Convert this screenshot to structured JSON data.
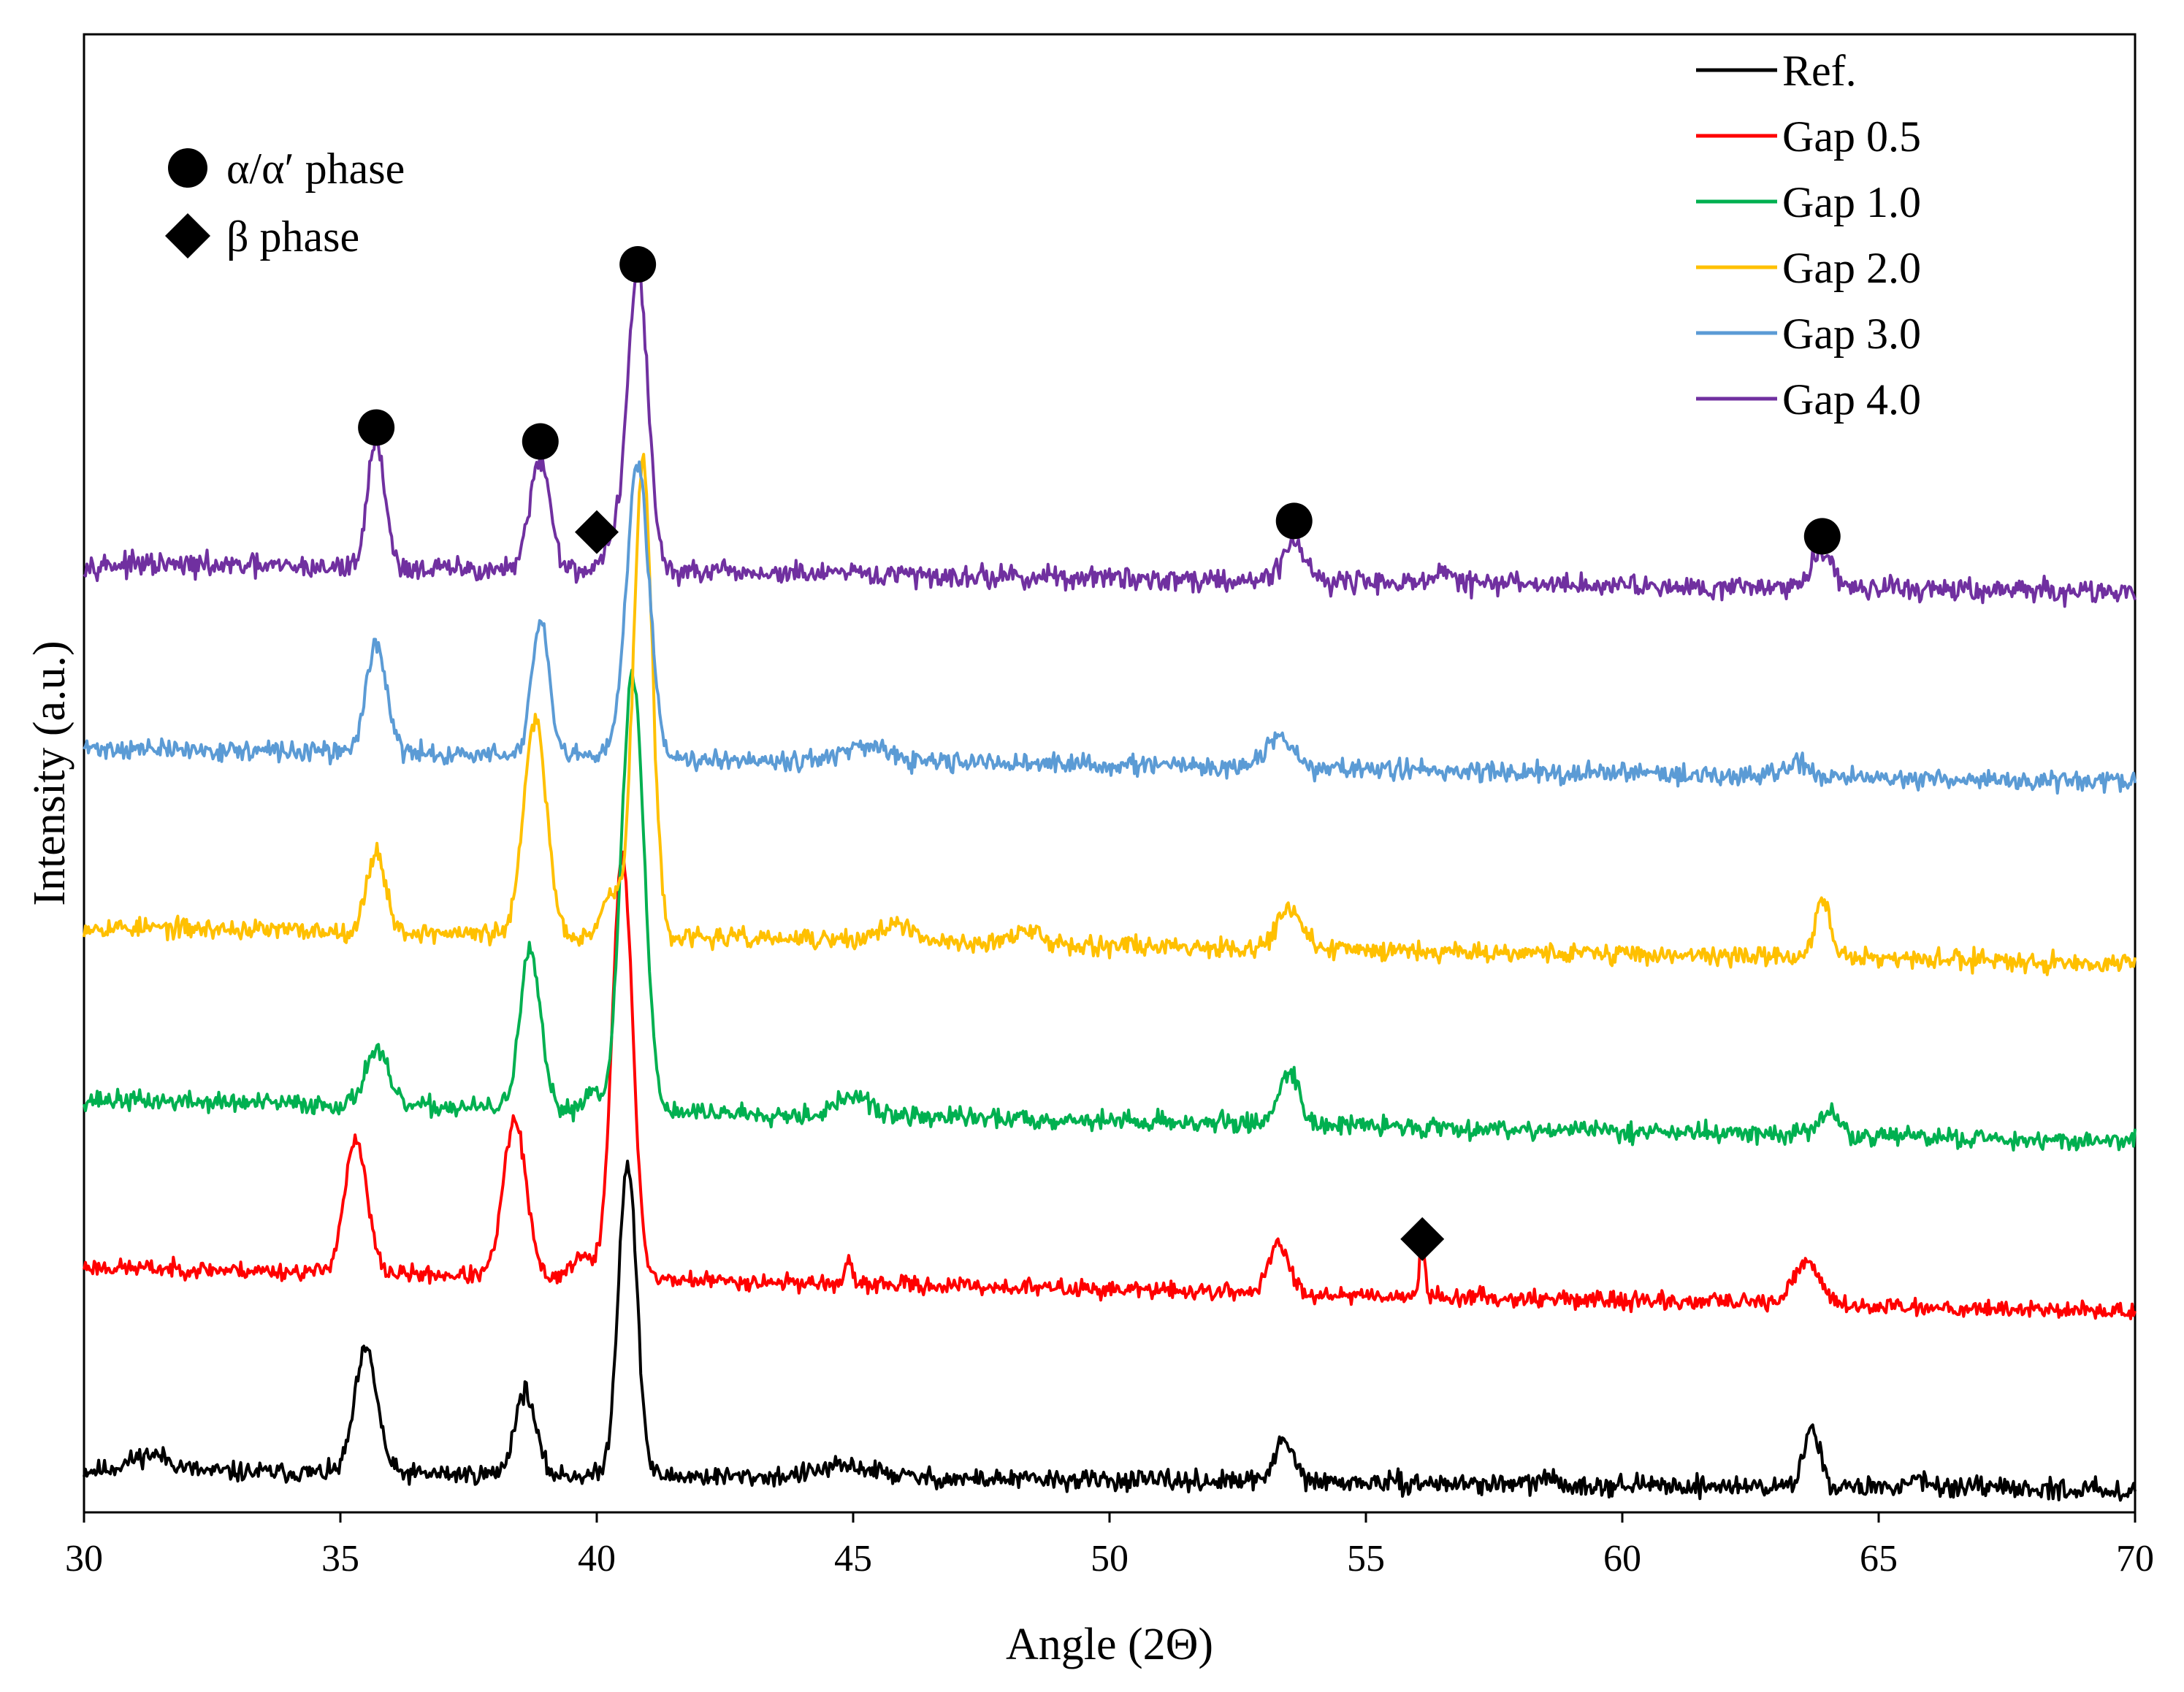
{
  "chart_data": {
    "type": "line",
    "title": "",
    "xlabel": "Angle (2Θ)",
    "ylabel": "Intensity (a.u.)",
    "xlim": [
      30,
      70
    ],
    "ylim": [
      0,
      1060
    ],
    "xticks": [
      30,
      35,
      40,
      45,
      50,
      55,
      60,
      65,
      70
    ],
    "legend_position": "top-right",
    "phase_legend": [
      {
        "symbol": "circle",
        "label": "α/α′ phase"
      },
      {
        "symbol": "diamond",
        "label": "β phase"
      }
    ],
    "series": [
      {
        "name": "Ref.",
        "color": "#000000",
        "baseline": 30,
        "drift": -14,
        "noise": 7,
        "seed": 11,
        "peaks": [
          [
            31.3,
            12,
            0.4
          ],
          [
            35.5,
            88,
            0.22
          ],
          [
            38.6,
            60,
            0.2
          ],
          [
            40.6,
            225,
            0.18
          ],
          [
            44.9,
            8,
            0.6
          ],
          [
            53.4,
            28,
            0.2
          ],
          [
            58.5,
            6,
            0.1
          ],
          [
            63.7,
            42,
            0.16
          ],
          [
            65.8,
            8,
            0.2
          ]
        ]
      },
      {
        "name": "Gap 0.5",
        "color": "#ff0000",
        "baseline": 176,
        "drift": -32,
        "noise": 6,
        "seed": 23,
        "peaks": [
          [
            35.3,
            94,
            0.22
          ],
          [
            38.4,
            112,
            0.22
          ],
          [
            39.7,
            15,
            0.2
          ],
          [
            40.5,
            302,
            0.2
          ],
          [
            44.9,
            18,
            0.05
          ],
          [
            53.3,
            34,
            0.2
          ],
          [
            56.1,
            42,
            0.05
          ],
          [
            61.8,
            8,
            0.05
          ],
          [
            63.6,
            30,
            0.25
          ]
        ]
      },
      {
        "name": "Gap 1.0",
        "color": "#00b050",
        "baseline": 296,
        "drift": -30,
        "noise": 7,
        "seed": 37,
        "peaks": [
          [
            35.7,
            40,
            0.22
          ],
          [
            38.7,
            112,
            0.2
          ],
          [
            39.9,
            14,
            0.15
          ],
          [
            40.7,
            314,
            0.22
          ],
          [
            45.0,
            14,
            0.3
          ],
          [
            53.5,
            38,
            0.2
          ],
          [
            64.0,
            16,
            0.2
          ]
        ]
      },
      {
        "name": "Gap 2.0",
        "color": "#ffc000",
        "baseline": 420,
        "drift": -26,
        "noise": 7,
        "seed": 53,
        "peaks": [
          [
            35.7,
            58,
            0.18
          ],
          [
            38.8,
            155,
            0.22
          ],
          [
            40.3,
            30,
            0.2
          ],
          [
            40.9,
            340,
            0.18
          ],
          [
            45.8,
            12,
            0.3
          ],
          [
            48.4,
            8,
            0.3
          ],
          [
            53.5,
            30,
            0.22
          ],
          [
            63.9,
            44,
            0.14
          ]
        ]
      },
      {
        "name": "Gap 3.0",
        "color": "#5b9bd5",
        "baseline": 548,
        "drift": -24,
        "noise": 7,
        "seed": 71,
        "peaks": [
          [
            35.7,
            78,
            0.2
          ],
          [
            38.9,
            95,
            0.17
          ],
          [
            40.8,
            212,
            0.22
          ],
          [
            45.2,
            10,
            0.4
          ],
          [
            53.3,
            22,
            0.25
          ],
          [
            63.4,
            12,
            0.2
          ]
        ]
      },
      {
        "name": "Gap 4.0",
        "color": "#7030a0",
        "baseline": 680,
        "drift": -20,
        "noise": 8,
        "seed": 97,
        "peaks": [
          [
            35.7,
            92,
            0.17
          ],
          [
            38.9,
            78,
            0.2
          ],
          [
            40.3,
            18,
            0.2
          ],
          [
            40.8,
            215,
            0.2
          ],
          [
            53.6,
            28,
            0.22
          ],
          [
            56.5,
            6,
            0.2
          ],
          [
            63.9,
            26,
            0.22
          ]
        ]
      }
    ],
    "annotations": [
      {
        "symbol": "circle",
        "x": 35.7,
        "y": 778
      },
      {
        "symbol": "circle",
        "x": 38.9,
        "y": 768
      },
      {
        "symbol": "diamond",
        "x": 40.0,
        "y": 703
      },
      {
        "symbol": "circle",
        "x": 40.8,
        "y": 895
      },
      {
        "symbol": "circle",
        "x": 53.6,
        "y": 711
      },
      {
        "symbol": "circle",
        "x": 63.9,
        "y": 700
      },
      {
        "symbol": "diamond",
        "x": 56.1,
        "y": 196
      }
    ]
  }
}
